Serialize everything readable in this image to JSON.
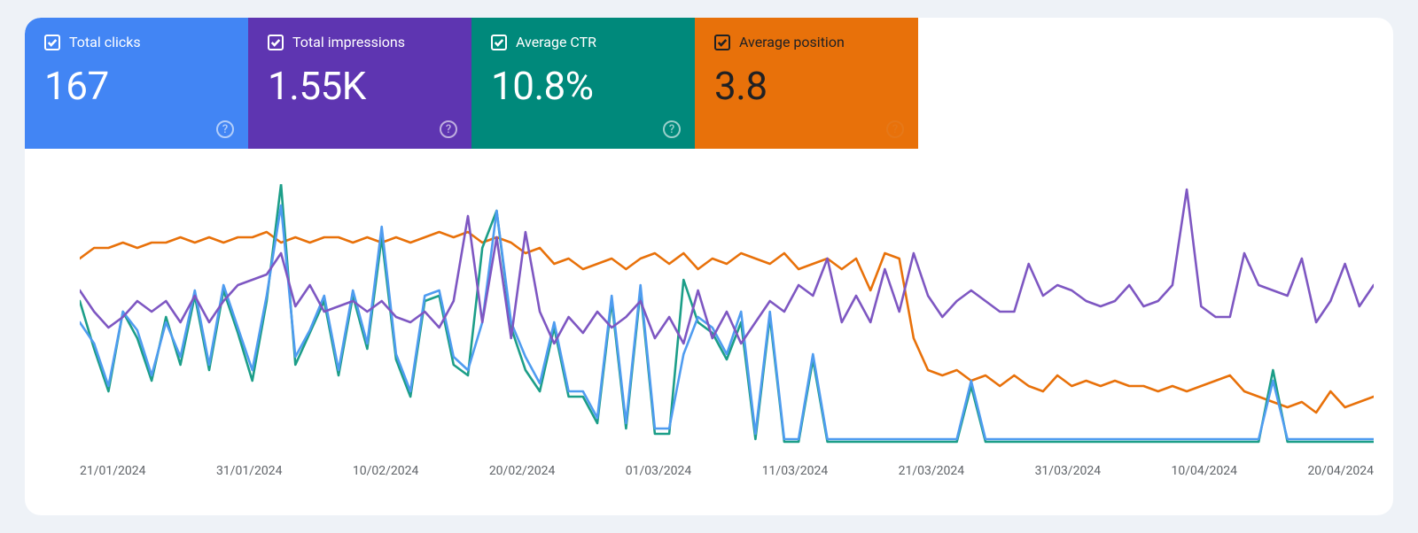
{
  "page_background": "#eef2f7",
  "panel_background": "#ffffff",
  "metrics": [
    {
      "id": "total-clicks",
      "label": "Total clicks",
      "value": "167",
      "bg": "#4285f4",
      "text": "#ffffff",
      "checked": true
    },
    {
      "id": "total-impressions",
      "label": "Total impressions",
      "value": "1.55K",
      "bg": "#5e35b1",
      "text": "#ffffff",
      "checked": true
    },
    {
      "id": "average-ctr",
      "label": "Average CTR",
      "value": "10.8%",
      "bg": "#00897b",
      "text": "#ffffff",
      "checked": true
    },
    {
      "id": "average-position",
      "label": "Average position",
      "value": "3.8",
      "bg": "#e8710a",
      "text": "#202124",
      "checked": true
    }
  ],
  "chart": {
    "type": "line",
    "x_labels": [
      "21/01/2024",
      "31/01/2024",
      "10/02/2024",
      "20/02/2024",
      "01/03/2024",
      "11/03/2024",
      "21/03/2024",
      "31/03/2024",
      "10/04/2024",
      "20/04/2024"
    ],
    "x_label_color": "#5f6368",
    "x_label_fontsize": 14,
    "y_range": [
      0,
      100
    ],
    "line_width": 2.6,
    "point_count": 91,
    "series": [
      {
        "name": "clicks",
        "color": "#4f9cf0",
        "values": [
          48,
          40,
          24,
          52,
          45,
          28,
          48,
          35,
          60,
          32,
          62,
          46,
          30,
          58,
          92,
          35,
          45,
          58,
          30,
          60,
          40,
          84,
          36,
          22,
          58,
          60,
          35,
          30,
          48,
          90,
          48,
          35,
          25,
          48,
          22,
          22,
          12,
          58,
          10,
          62,
          8,
          8,
          36,
          50,
          46,
          36,
          52,
          6,
          52,
          4,
          4,
          36,
          4,
          4,
          4,
          4,
          4,
          4,
          4,
          4,
          4,
          4,
          26,
          4,
          4,
          4,
          4,
          4,
          4,
          4,
          4,
          4,
          4,
          4,
          4,
          4,
          4,
          4,
          4,
          4,
          4,
          4,
          4,
          26,
          4,
          4,
          4,
          4,
          4,
          4,
          4
        ]
      },
      {
        "name": "impressions",
        "color": "#7e57c2",
        "values": [
          60,
          52,
          46,
          50,
          56,
          52,
          56,
          48,
          58,
          48,
          56,
          62,
          64,
          66,
          74,
          54,
          62,
          52,
          54,
          56,
          52,
          56,
          50,
          48,
          52,
          46,
          56,
          88,
          48,
          80,
          42,
          82,
          52,
          40,
          50,
          44,
          52,
          46,
          50,
          56,
          42,
          50,
          40,
          60,
          42,
          52,
          40,
          48,
          56,
          52,
          62,
          58,
          72,
          48,
          58,
          48,
          68,
          52,
          74,
          58,
          50,
          56,
          60,
          56,
          52,
          52,
          70,
          58,
          62,
          60,
          56,
          54,
          56,
          62,
          54,
          56,
          62,
          98,
          54,
          50,
          50,
          74,
          62,
          60,
          58,
          72,
          48,
          56,
          70,
          54,
          62
        ]
      },
      {
        "name": "ctr",
        "color": "#1c9e88",
        "values": [
          56,
          38,
          22,
          52,
          42,
          26,
          50,
          32,
          58,
          30,
          60,
          44,
          26,
          56,
          100,
          32,
          44,
          56,
          28,
          58,
          38,
          80,
          34,
          20,
          56,
          58,
          32,
          28,
          76,
          90,
          46,
          30,
          22,
          46,
          20,
          20,
          10,
          56,
          8,
          60,
          6,
          6,
          64,
          48,
          44,
          34,
          48,
          4,
          50,
          3,
          3,
          34,
          3,
          3,
          3,
          3,
          3,
          3,
          3,
          3,
          3,
          3,
          24,
          3,
          3,
          3,
          3,
          3,
          3,
          3,
          3,
          3,
          3,
          3,
          3,
          3,
          3,
          3,
          3,
          3,
          3,
          3,
          3,
          30,
          3,
          3,
          3,
          3,
          3,
          3,
          3
        ]
      },
      {
        "name": "position",
        "color": "#e8710a",
        "values": [
          72,
          76,
          76,
          78,
          76,
          78,
          78,
          80,
          78,
          80,
          78,
          80,
          80,
          82,
          78,
          80,
          78,
          80,
          80,
          78,
          80,
          78,
          80,
          78,
          80,
          82,
          80,
          82,
          78,
          80,
          78,
          74,
          76,
          70,
          72,
          68,
          70,
          72,
          68,
          72,
          74,
          70,
          74,
          68,
          72,
          70,
          74,
          72,
          70,
          74,
          68,
          70,
          72,
          68,
          72,
          60,
          74,
          72,
          42,
          30,
          28,
          30,
          26,
          28,
          24,
          28,
          24,
          22,
          28,
          24,
          26,
          24,
          26,
          24,
          24,
          22,
          24,
          22,
          24,
          26,
          28,
          22,
          20,
          18,
          16,
          18,
          14,
          22,
          16,
          18,
          20
        ]
      }
    ]
  }
}
